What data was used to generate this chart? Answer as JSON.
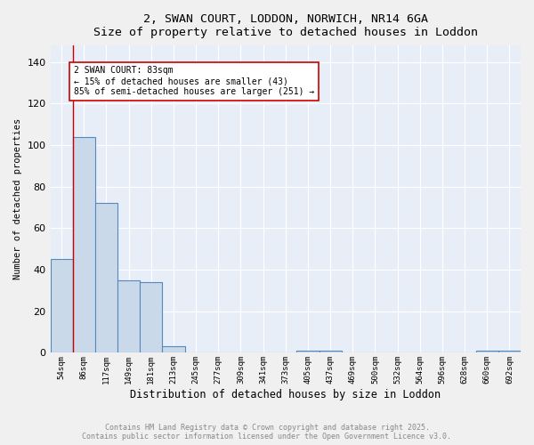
{
  "title": "2, SWAN COURT, LODDON, NORWICH, NR14 6GA",
  "subtitle": "Size of property relative to detached houses in Loddon",
  "xlabel": "Distribution of detached houses by size in Loddon",
  "ylabel": "Number of detached properties",
  "bar_color": "#c9d9ea",
  "bar_edge_color": "#5588bb",
  "bg_color": "#e8eef8",
  "grid_color": "#ffffff",
  "fig_color": "#f0f0f0",
  "categories": [
    "54sqm",
    "86sqm",
    "117sqm",
    "149sqm",
    "181sqm",
    "213sqm",
    "245sqm",
    "277sqm",
    "309sqm",
    "341sqm",
    "373sqm",
    "405sqm",
    "437sqm",
    "469sqm",
    "500sqm",
    "532sqm",
    "564sqm",
    "596sqm",
    "628sqm",
    "660sqm",
    "692sqm"
  ],
  "values": [
    45,
    104,
    72,
    35,
    34,
    3,
    0,
    0,
    0,
    0,
    0,
    1,
    1,
    0,
    0,
    0,
    0,
    0,
    0,
    1,
    1
  ],
  "vline_x": 0.5,
  "vline_color": "#cc0000",
  "annotation_text": "2 SWAN COURT: 83sqm\n← 15% of detached houses are smaller (43)\n85% of semi-detached houses are larger (251) →",
  "annotation_box_color": "#ffffff",
  "annotation_box_edge": "#cc0000",
  "ylim": [
    0,
    148
  ],
  "yticks": [
    0,
    20,
    40,
    60,
    80,
    100,
    120,
    140
  ],
  "footer": "Contains HM Land Registry data © Crown copyright and database right 2025.\nContains public sector information licensed under the Open Government Licence v3.0.",
  "footer_color": "#888888"
}
